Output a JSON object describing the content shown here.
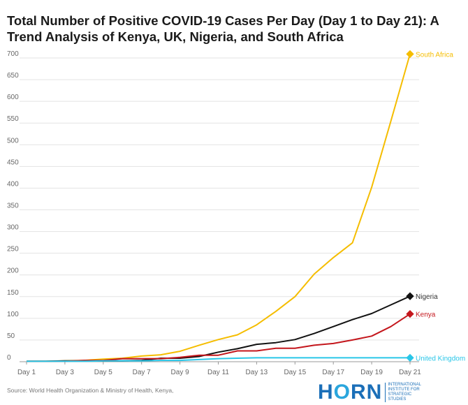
{
  "chart_data": {
    "type": "line",
    "title": "Total Number of Positive COVID-19 Cases Per Day (Day 1 to Day 21): A Trend Analysis of Kenya, UK, Nigeria, and South Africa",
    "xlabel": "",
    "ylabel": "",
    "ylim": [
      0,
      700
    ],
    "yticks": [
      0,
      50,
      100,
      150,
      200,
      250,
      300,
      350,
      400,
      450,
      500,
      550,
      600,
      650,
      700
    ],
    "x": [
      "Day 1",
      "Day 2",
      "Day 3",
      "Day 4",
      "Day 5",
      "Day 6",
      "Day 7",
      "Day 8",
      "Day 9",
      "Day 10",
      "Day 11",
      "Day 12",
      "Day 13",
      "Day 14",
      "Day 15",
      "Day 16",
      "Day 17",
      "Day 18",
      "Day 19",
      "Day 20",
      "Day 21"
    ],
    "xtick_labels": [
      "Day 1",
      "Day 3",
      "Day 5",
      "Day 7",
      "Day 9",
      "Day 11",
      "Day 13",
      "Day 15",
      "Day 17",
      "Day 19",
      "Day 21"
    ],
    "grid": true,
    "series": [
      {
        "name": "South Africa",
        "color": "#f5bd00",
        "values": [
          1,
          1,
          2,
          3,
          6,
          8,
          13,
          16,
          24,
          38,
          51,
          62,
          85,
          116,
          150,
          202,
          240,
          274,
          402,
          554,
          709
        ]
      },
      {
        "name": "Nigeria",
        "color": "#111111",
        "values": [
          1,
          1,
          2,
          2,
          2,
          2,
          3,
          8,
          8,
          12,
          22,
          30,
          40,
          44,
          51,
          65,
          81,
          97,
          111,
          131,
          151
        ]
      },
      {
        "name": "Kenya",
        "color": "#c4161c",
        "values": [
          1,
          1,
          1,
          3,
          3,
          7,
          7,
          7,
          10,
          15,
          15,
          25,
          25,
          31,
          31,
          38,
          42,
          50,
          59,
          81,
          110
        ]
      },
      {
        "name": "United Kingdom",
        "color": "#29c6e8",
        "values": [
          1,
          1,
          1,
          1,
          2,
          2,
          2,
          3,
          3,
          5,
          7,
          8,
          9,
          9,
          9,
          9,
          9,
          9,
          9,
          9,
          9
        ]
      }
    ]
  },
  "source": "Source: World Health Organization & Ministry of Health, Kenya,",
  "logo": {
    "name": "HORN",
    "tagline": "INTERNATIONAL INSTITUTE FOR STRATEGIC STUDIES"
  }
}
